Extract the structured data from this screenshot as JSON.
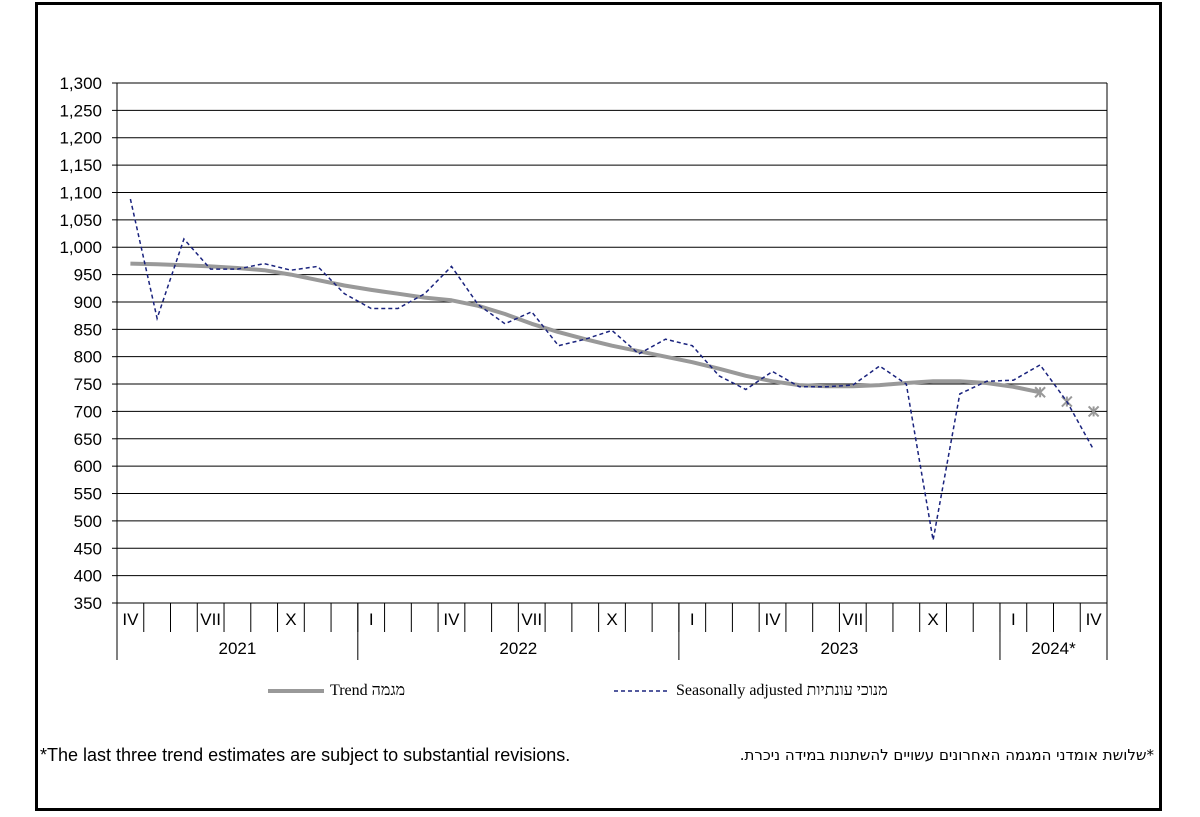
{
  "chart_data": {
    "type": "line",
    "ylim": [
      350,
      1300
    ],
    "yticks": [
      350,
      400,
      450,
      500,
      550,
      600,
      650,
      700,
      750,
      800,
      850,
      900,
      950,
      1000,
      1050,
      1100,
      1150,
      1200,
      1250,
      1300
    ],
    "ytick_labels": [
      "350",
      "400",
      "450",
      "500",
      "550",
      "600",
      "650",
      "700",
      "750",
      "800",
      "850",
      "900",
      "950",
      "1,000",
      "1,050",
      "1,100",
      "1,150",
      "1,200",
      "1,250",
      "1,300"
    ],
    "grid": true,
    "x_months": [
      "IV",
      "",
      "",
      "VII",
      "",
      "",
      "X",
      "",
      "",
      "I",
      "",
      "",
      "IV",
      "",
      "",
      "VII",
      "",
      "",
      "X",
      "",
      "",
      "I",
      "",
      "",
      "IV",
      "",
      "",
      "VII",
      "",
      "",
      "X",
      "",
      "",
      "I",
      "",
      "",
      "IV"
    ],
    "years": [
      {
        "label": "2021",
        "months": 9
      },
      {
        "label": "2022",
        "months": 12
      },
      {
        "label": "2023",
        "months": 12
      },
      {
        "label": "2024*",
        "months": 4
      }
    ],
    "series": [
      {
        "name": "Trend מגמה",
        "color": "#999999",
        "style": "solid",
        "values": [
          970,
          969,
          967,
          965,
          962,
          958,
          950,
          940,
          930,
          922,
          915,
          908,
          903,
          893,
          878,
          860,
          845,
          832,
          820,
          810,
          800,
          790,
          778,
          765,
          755,
          748,
          746,
          746,
          748,
          752,
          755,
          755,
          752,
          745,
          735,
          null,
          null
        ],
        "provisional": [
          735,
          718,
          700
        ]
      },
      {
        "name": "Seasonally adjusted מנוכי עונתיות",
        "color": "#1a237e",
        "style": "dashed",
        "values": [
          1088,
          870,
          1015,
          960,
          960,
          970,
          958,
          965,
          915,
          888,
          888,
          915,
          965,
          895,
          860,
          882,
          820,
          832,
          848,
          805,
          832,
          820,
          765,
          740,
          773,
          745,
          745,
          748,
          783,
          750,
          465,
          732,
          755,
          757,
          785,
          718,
          630
        ]
      }
    ]
  },
  "legend": {
    "trend_label": "Trend מגמה",
    "sa_label": "Seasonally adjusted מנוכי עונתיות"
  },
  "notes": {
    "english": "*The last three trend estimates are subject to substantial revisions.",
    "hebrew": "*שלושת אומדני המגמה האחרונים עשויים להשתנות במידה ניכרת."
  }
}
